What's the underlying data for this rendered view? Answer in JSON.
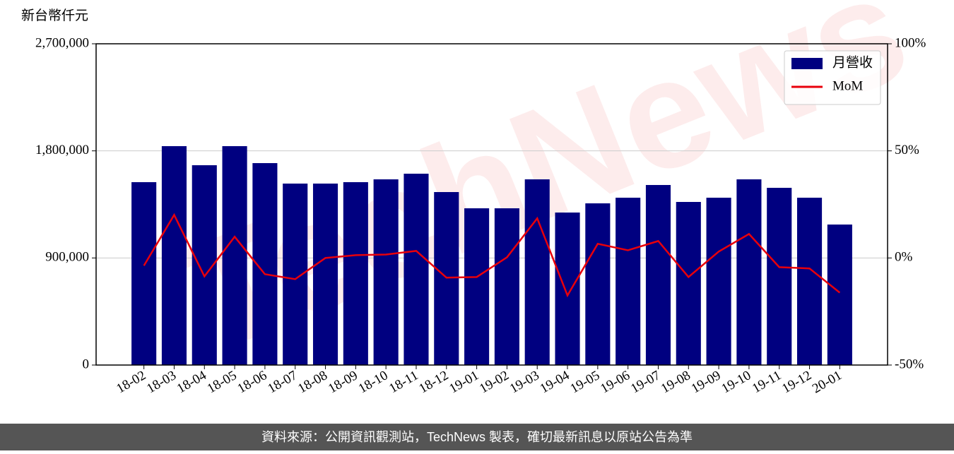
{
  "chart_data": {
    "type": "bar",
    "y_label": "新台幣仟元",
    "categories": [
      "18-02",
      "18-03",
      "18-04",
      "18-05",
      "18-06",
      "18-07",
      "18-08",
      "18-09",
      "18-10",
      "18-11",
      "18-12",
      "19-01",
      "19-02",
      "19-03",
      "19-04",
      "19-05",
      "19-06",
      "19-07",
      "19-08",
      "19-09",
      "19-10",
      "19-11",
      "19-12",
      "20-01"
    ],
    "series": [
      {
        "name": "月營收",
        "color": "#000080",
        "values": [
          1537000,
          1839600,
          1679300,
          1839600,
          1697100,
          1525000,
          1525000,
          1537000,
          1560600,
          1608100,
          1453800,
          1317300,
          1317300,
          1560600,
          1281700,
          1358900,
          1406300,
          1513100,
          1370700,
          1406300,
          1560600,
          1489400,
          1406300,
          1180800
        ]
      },
      {
        "name": "MoM",
        "color": "#e8000b",
        "axis": "y2",
        "type": "line",
        "values": [
          -3.6,
          20.1,
          -8.6,
          9.9,
          -7.6,
          -9.9,
          0,
          1.3,
          1.6,
          3.3,
          -9.2,
          -8.9,
          0.3,
          18.5,
          -17.5,
          6.6,
          3.6,
          7.9,
          -8.9,
          3.0,
          11.2,
          -4.3,
          -4.9,
          -16.2
        ]
      }
    ],
    "ylim": [
      0,
      2700000
    ],
    "yticks": [
      0,
      {
        "value": 900000,
        "label": "900,000"
      },
      {
        "value": 1800000,
        "label": "1,800,000"
      },
      {
        "value": 2700000,
        "label": "2,700,000"
      }
    ],
    "y2lim": [
      -50,
      100
    ],
    "y2ticks": [
      {
        "value": -50,
        "label": "-50%"
      },
      {
        "value": 0,
        "label": "0%"
      },
      {
        "value": 50,
        "label": "50%"
      },
      {
        "value": 100,
        "label": "100%"
      }
    ],
    "grid": true,
    "legend": "upper right",
    "watermark": "TechNews"
  },
  "footer": "資料來源：公開資訊觀測站，TechNews 製表，確切最新訊息以原站公告為準"
}
